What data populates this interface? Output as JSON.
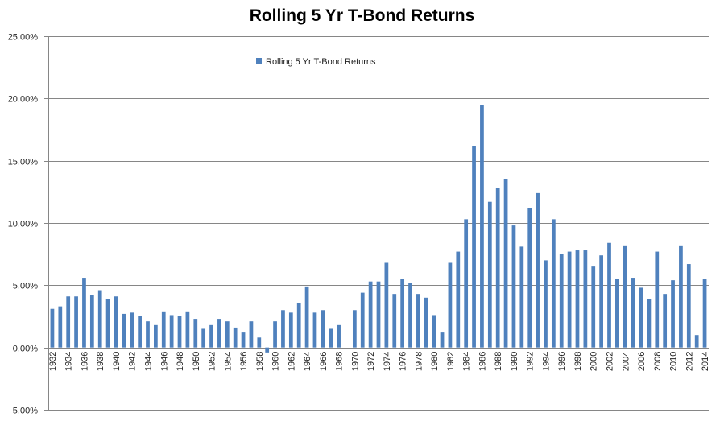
{
  "chart_data": {
    "type": "bar",
    "title": "Rolling 5 Yr T-Bond Returns",
    "xlabel": "",
    "ylabel": "",
    "ylim": [
      -0.05,
      0.25
    ],
    "ytick_values": [
      -0.05,
      0,
      0.05,
      0.1,
      0.15,
      0.2,
      0.25
    ],
    "ytick_labels": [
      "-5.00%",
      "0.00%",
      "5.00%",
      "10.00%",
      "15.00%",
      "20.00%",
      "25.00%"
    ],
    "grid": true,
    "legend_position": "top-left",
    "bar_color": "#4F81BD",
    "categories": [
      "1932",
      "1933",
      "1934",
      "1935",
      "1936",
      "1937",
      "1938",
      "1939",
      "1940",
      "1941",
      "1942",
      "1943",
      "1944",
      "1945",
      "1946",
      "1947",
      "1948",
      "1949",
      "1950",
      "1951",
      "1952",
      "1953",
      "1954",
      "1955",
      "1956",
      "1957",
      "1958",
      "1959",
      "1960",
      "1961",
      "1962",
      "1963",
      "1964",
      "1965",
      "1966",
      "1967",
      "1968",
      "1969",
      "1970",
      "1971",
      "1972",
      "1973",
      "1974",
      "1975",
      "1976",
      "1977",
      "1978",
      "1979",
      "1980",
      "1981",
      "1982",
      "1983",
      "1984",
      "1985",
      "1986",
      "1987",
      "1988",
      "1989",
      "1990",
      "1991",
      "1992",
      "1993",
      "1994",
      "1995",
      "1996",
      "1997",
      "1998",
      "1999",
      "2000",
      "2001",
      "2002",
      "2003",
      "2004",
      "2005",
      "2006",
      "2007",
      "2008",
      "2009",
      "2010",
      "2011",
      "2012",
      "2013",
      "2014"
    ],
    "series": [
      {
        "name": "Rolling 5 Yr T-Bond Returns",
        "values": [
          0.031,
          0.033,
          0.041,
          0.041,
          0.056,
          0.042,
          0.046,
          0.039,
          0.041,
          0.027,
          0.028,
          0.025,
          0.021,
          0.018,
          0.029,
          0.026,
          0.025,
          0.029,
          0.023,
          0.015,
          0.018,
          0.023,
          0.021,
          0.016,
          0.012,
          0.021,
          0.008,
          -0.004,
          0.021,
          0.03,
          0.028,
          0.036,
          0.049,
          0.028,
          0.03,
          0.015,
          0.018,
          0.0,
          0.03,
          0.044,
          0.053,
          0.053,
          0.068,
          0.043,
          0.055,
          0.052,
          0.043,
          0.04,
          0.026,
          0.012,
          0.068,
          0.077,
          0.103,
          0.162,
          0.195,
          0.117,
          0.128,
          0.135,
          0.098,
          0.081,
          0.112,
          0.124,
          0.07,
          0.103,
          0.075,
          0.077,
          0.078,
          0.078,
          0.065,
          0.074,
          0.084,
          0.055,
          0.082,
          0.056,
          0.048,
          0.039,
          0.077,
          0.043,
          0.054,
          0.082,
          0.067,
          0.01,
          0.055
        ]
      }
    ],
    "x_tick_labels": [
      "1932",
      "1934",
      "1936",
      "1938",
      "1940",
      "1942",
      "1944",
      "1946",
      "1948",
      "1950",
      "1952",
      "1954",
      "1956",
      "1958",
      "1960",
      "1962",
      "1964",
      "1966",
      "1968",
      "1970",
      "1972",
      "1974",
      "1976",
      "1978",
      "1980",
      "1982",
      "1984",
      "1986",
      "1988",
      "1990",
      "1992",
      "1994",
      "1996",
      "1998",
      "2000",
      "2002",
      "2004",
      "2006",
      "2008",
      "2010",
      "2012",
      "2014"
    ]
  }
}
